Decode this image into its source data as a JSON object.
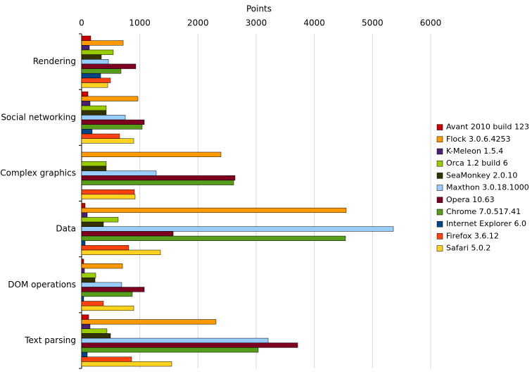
{
  "chart_data": {
    "type": "hbar",
    "x_label": "Points",
    "categories": [
      "Rendering",
      "Social networking",
      "Complex graphics",
      "Data",
      "DOM operations",
      "Text parsing"
    ],
    "xlim": [
      0,
      6000
    ],
    "xticks": [
      0,
      1000,
      2000,
      3000,
      4000,
      5000,
      6000
    ],
    "grid": true,
    "legend": "right",
    "series": [
      {
        "name": "Avant 2010 build 123",
        "color": "#cc0000",
        "values": [
          157,
          109,
          0,
          60,
          36,
          121
        ]
      },
      {
        "name": "Flock 3.0.6.4253",
        "color": "#ff9900",
        "values": [
          714,
          968,
          2395,
          4548,
          702,
          2310
        ]
      },
      {
        "name": "K-Meleon 1.5.4",
        "color": "#4b1f6f",
        "values": [
          133,
          145,
          0,
          97,
          48,
          145
        ]
      },
      {
        "name": "Orca 1.2 build 6",
        "color": "#99cc00",
        "values": [
          544,
          423,
          423,
          629,
          242,
          435
        ]
      },
      {
        "name": "SeaMonkey 2.0.10",
        "color": "#333300",
        "values": [
          339,
          423,
          423,
          375,
          230,
          496
        ]
      },
      {
        "name": "Maxthon 3.0.18.1000",
        "color": "#99ccff",
        "values": [
          460,
          750,
          1282,
          5359,
          689,
          3206
        ]
      },
      {
        "name": "Opera 10.63",
        "color": "#7e0021",
        "values": [
          931,
          1077,
          2637,
          1573,
          1077,
          3714
        ]
      },
      {
        "name": "Chrome 7.0.517.41",
        "color": "#579d1c",
        "values": [
          677,
          1040,
          2613,
          4536,
          871,
          3036
        ]
      },
      {
        "name": "Internet Explorer 6.0",
        "color": "#004586",
        "values": [
          327,
          181,
          0,
          60,
          36,
          97
        ]
      },
      {
        "name": "Firefox 3.6.12",
        "color": "#ff420e",
        "values": [
          496,
          653,
          907,
          810,
          375,
          859
        ]
      },
      {
        "name": "Safari 5.0.2",
        "color": "#ffd320",
        "values": [
          448,
          895,
          919,
          1355,
          895,
          1548
        ]
      }
    ]
  }
}
